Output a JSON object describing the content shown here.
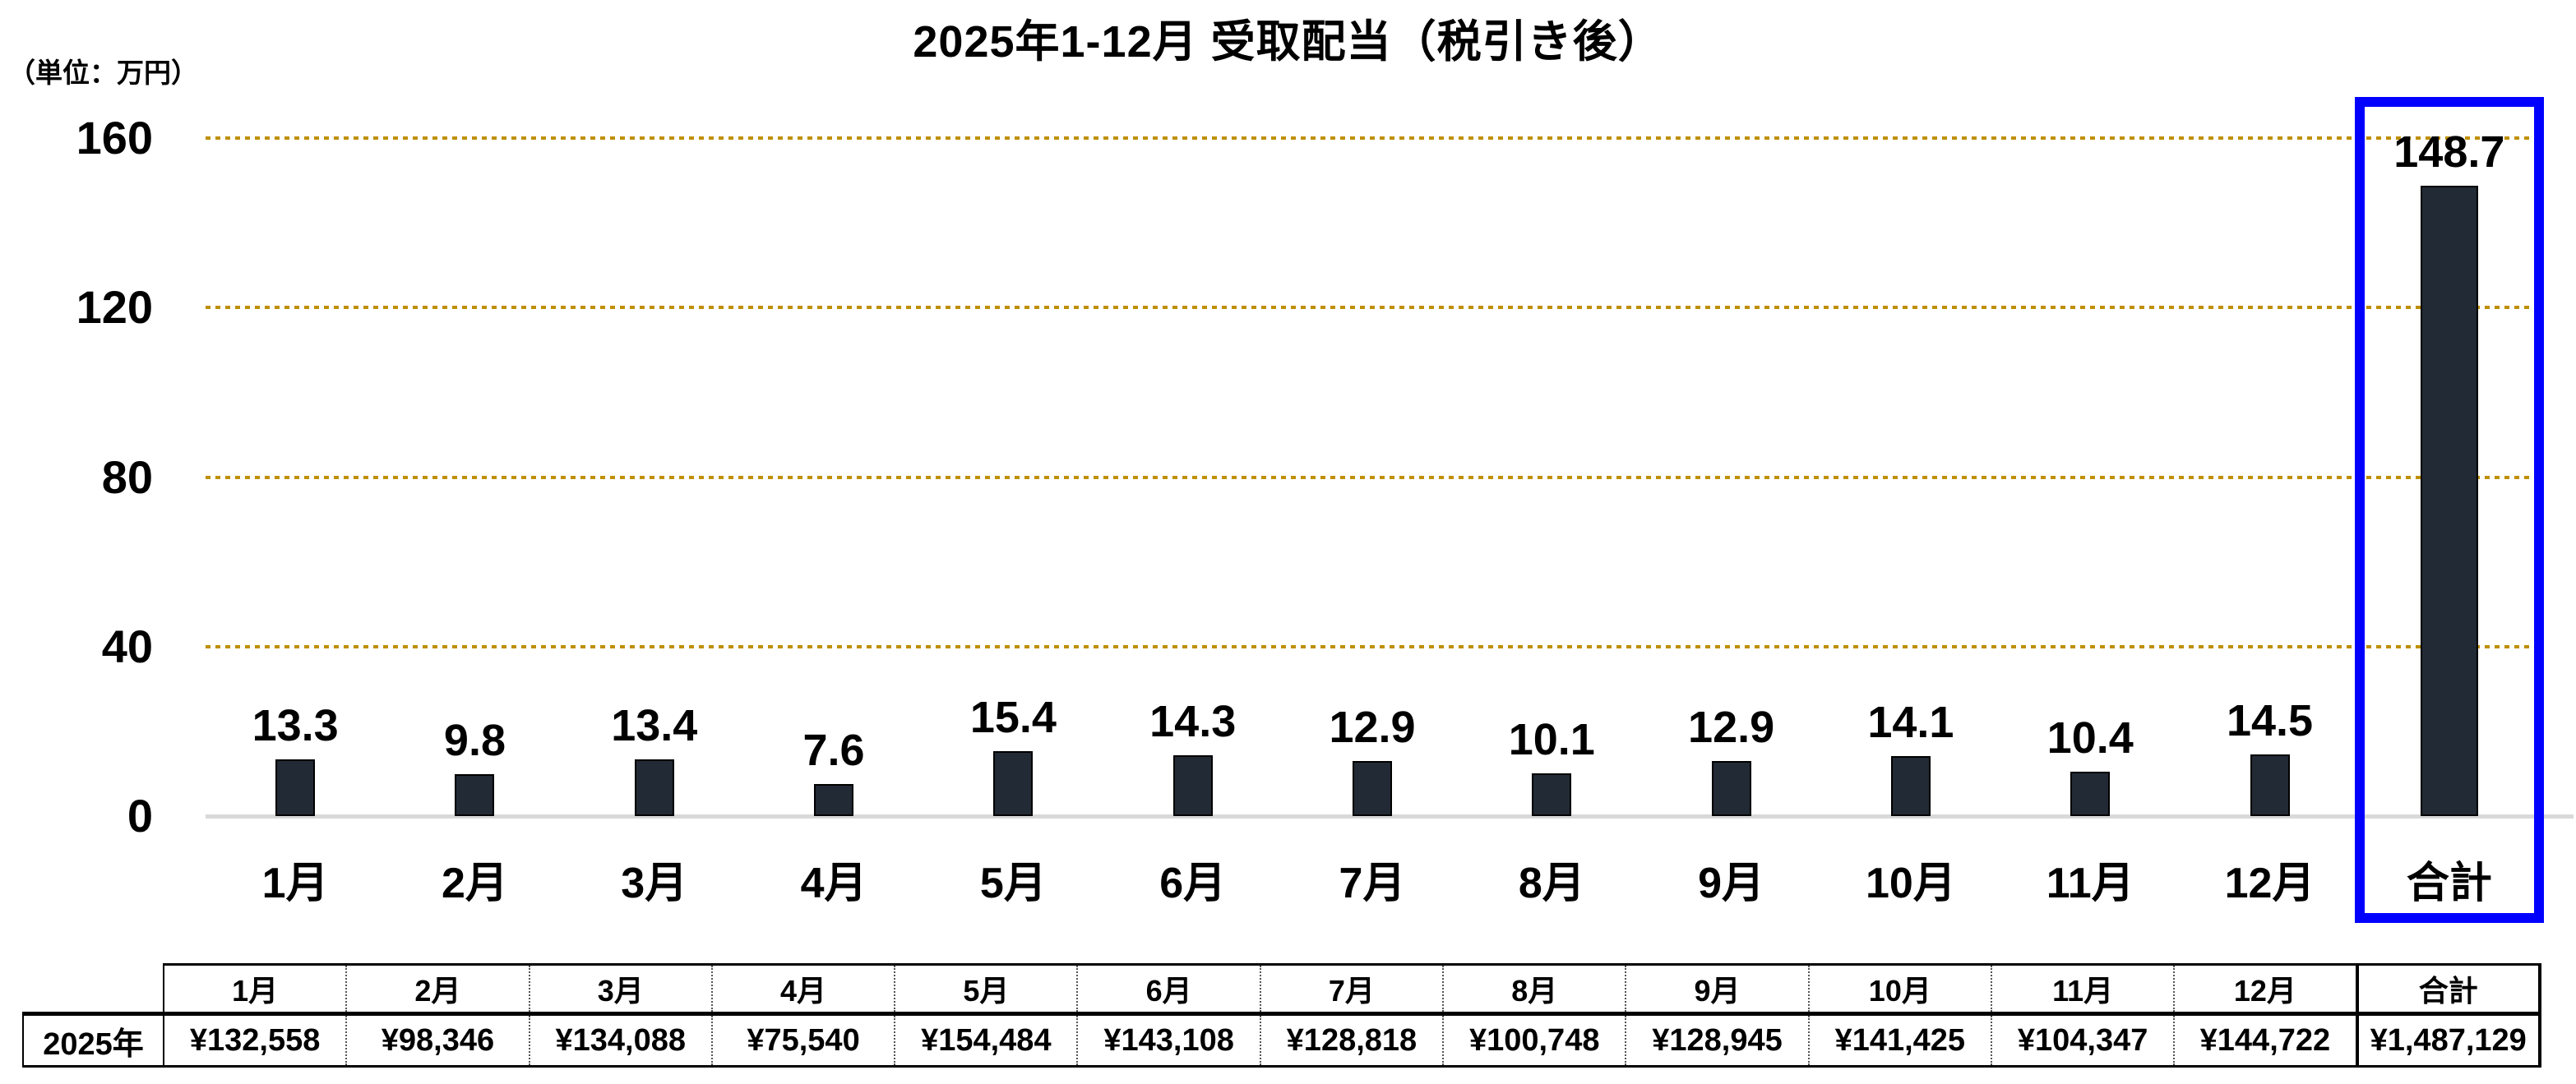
{
  "chart_data": {
    "type": "bar",
    "title": "2025年1-12月 受取配当（税引き後）",
    "unit_label": "（単位：万円）",
    "categories": [
      "1月",
      "2月",
      "3月",
      "4月",
      "5月",
      "6月",
      "7月",
      "8月",
      "9月",
      "10月",
      "11月",
      "12月",
      "合計"
    ],
    "values": [
      13.3,
      9.8,
      13.4,
      7.6,
      15.4,
      14.3,
      12.9,
      10.1,
      12.9,
      14.1,
      10.4,
      14.5,
      148.7
    ],
    "value_labels": [
      "13.3",
      "9.8",
      "13.4",
      "7.6",
      "15.4",
      "14.3",
      "12.9",
      "10.1",
      "12.9",
      "14.1",
      "10.4",
      "14.5",
      "148.7"
    ],
    "ylim": [
      0,
      160
    ],
    "yticks": [
      0,
      40,
      80,
      120,
      160
    ],
    "grid": "horizontal-dotted",
    "legend": "none",
    "highlight_index": 12,
    "colors": {
      "bar": "#222A35",
      "bar_border": "#000000",
      "gridline": "#BF8F00",
      "axis_line": "#D9D9D9",
      "highlight_box": "#0000FF",
      "text": "#000000"
    }
  },
  "table": {
    "row_label": "2025年",
    "columns": [
      "1月",
      "2月",
      "3月",
      "4月",
      "5月",
      "6月",
      "7月",
      "8月",
      "9月",
      "10月",
      "11月",
      "12月",
      "合計"
    ],
    "values": [
      "¥132,558",
      "¥98,346",
      "¥134,088",
      "¥75,540",
      "¥154,484",
      "¥143,108",
      "¥128,818",
      "¥100,748",
      "¥128,945",
      "¥141,425",
      "¥104,347",
      "¥144,722",
      "¥1,487,129"
    ]
  }
}
